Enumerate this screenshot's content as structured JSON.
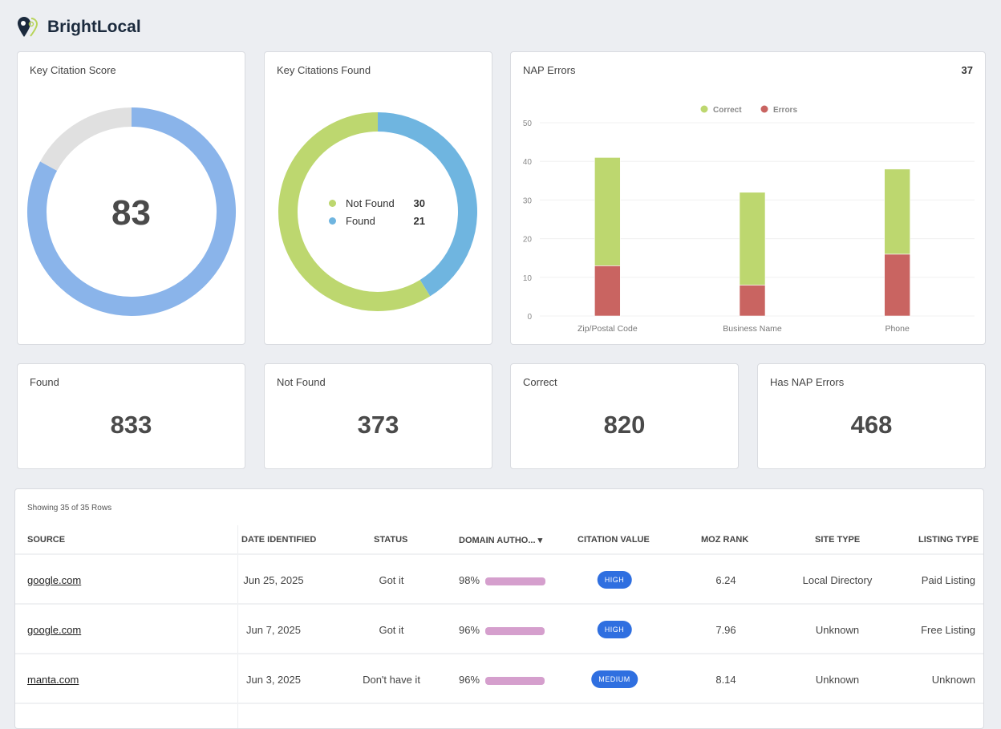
{
  "brand": {
    "name": "BrightLocal"
  },
  "score_card": {
    "title": "Key Citation Score",
    "score": 83,
    "max": 100,
    "colors": {
      "fill": "#8ab4ea",
      "rest": "#e0e0e0"
    }
  },
  "found_card": {
    "title": "Key Citations Found",
    "segments": [
      {
        "label": "Found",
        "value": 21,
        "color": "#6fb5e0"
      },
      {
        "label": "Not Found",
        "value": 30,
        "color": "#bdd76f"
      }
    ],
    "legend": [
      {
        "label": "Not Found",
        "value": "30"
      },
      {
        "label": "Found",
        "value": "21"
      }
    ]
  },
  "nap_card": {
    "title": "NAP Errors",
    "total": "37"
  },
  "chart_data": {
    "type": "bar",
    "stacked": true,
    "categories": [
      "Zip/Postal Code",
      "Business Name",
      "Phone"
    ],
    "series": [
      {
        "name": "Correct",
        "values": [
          28,
          24,
          22
        ],
        "color": "#bdd76f"
      },
      {
        "name": "Errors",
        "values": [
          13,
          8,
          16
        ],
        "color": "#c96461"
      }
    ],
    "ylim": [
      0,
      50
    ],
    "yticks": [
      "0",
      "10",
      "20",
      "30",
      "40",
      "50"
    ],
    "grid": true,
    "legend": "top-center"
  },
  "stats": [
    {
      "label": "Found",
      "value": "833"
    },
    {
      "label": "Not Found",
      "value": "373"
    },
    {
      "label": "Correct",
      "value": "820"
    },
    {
      "label": "Has NAP Errors",
      "value": "468"
    }
  ],
  "table": {
    "showing": "Showing 35 of 35 Rows",
    "headers": [
      "SOURCE",
      "DATE IDENTIFIED",
      "STATUS",
      "DOMAIN AUTHO...",
      "CITATION VALUE",
      "MOZ RANK",
      "SITE TYPE",
      "LISTING TYPE"
    ],
    "sort_icon": "▾",
    "rows": [
      {
        "source": "google.com",
        "date": "Jun 25, 2025",
        "status": "Got it",
        "da": "98%",
        "da_pct": 98,
        "citation": "HIGH",
        "moz": "6.24",
        "site": "Local Directory",
        "listing": "Paid Listing"
      },
      {
        "source": "google.com",
        "date": "Jun 7, 2025",
        "status": "Got it",
        "da": "96%",
        "da_pct": 96,
        "citation": "HIGH",
        "moz": "7.96",
        "site": "Unknown",
        "listing": "Free Listing"
      },
      {
        "source": "manta.com",
        "date": "Jun 3, 2025",
        "status": "Don't have it",
        "da": "96%",
        "da_pct": 96,
        "citation": "MEDIUM",
        "moz": "8.14",
        "site": "Unknown",
        "listing": "Unknown"
      }
    ]
  }
}
